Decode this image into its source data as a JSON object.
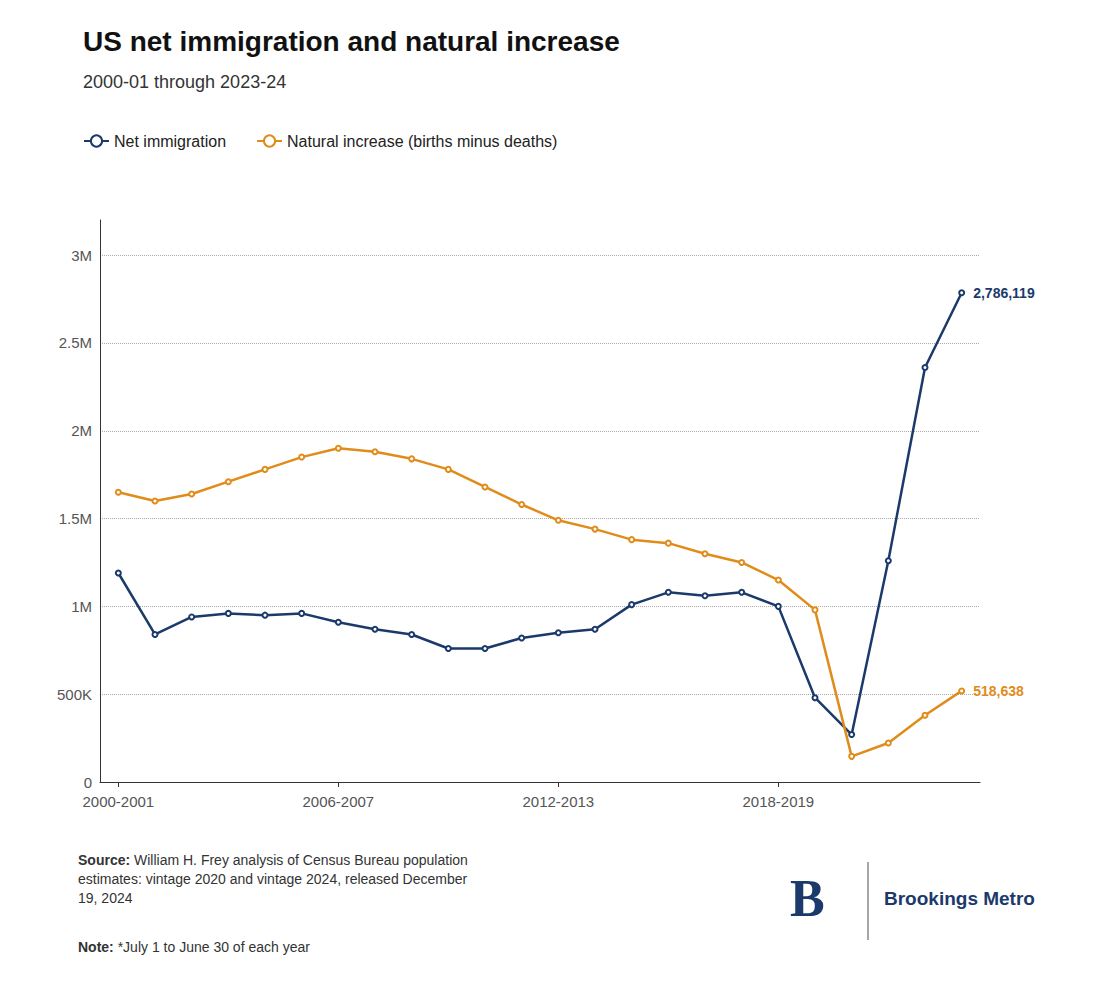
{
  "chart_data": {
    "type": "line",
    "title": "US net immigration and natural increase",
    "subtitle": "2000-01 through 2023-24",
    "categories": [
      "2000-2001",
      null,
      null,
      null,
      null,
      null,
      "2006-2007",
      null,
      null,
      null,
      null,
      null,
      "2012-2013",
      null,
      null,
      null,
      null,
      null,
      "2018-2019",
      null,
      null,
      null,
      null,
      null
    ],
    "series": [
      {
        "name": "Net immigration",
        "color": "#1b3a6b",
        "values": [
          1190000,
          840000,
          940000,
          960000,
          950000,
          960000,
          910000,
          870000,
          840000,
          760000,
          760000,
          820000,
          850000,
          870000,
          1010000,
          1080000,
          1060000,
          1080000,
          1000000,
          480000,
          270000,
          1260000,
          2360000,
          2786119
        ],
        "value_labels": [
          null,
          null,
          null,
          null,
          null,
          null,
          null,
          null,
          null,
          null,
          null,
          null,
          null,
          null,
          null,
          null,
          null,
          null,
          null,
          null,
          null,
          null,
          null,
          "2,786,119"
        ]
      },
      {
        "name": "Natural increase (births minus deaths)",
        "color": "#e08c1a",
        "values": [
          1650000,
          1600000,
          1640000,
          1710000,
          1780000,
          1850000,
          1900000,
          1880000,
          1840000,
          1780000,
          1680000,
          1580000,
          1490000,
          1440000,
          1380000,
          1360000,
          1300000,
          1250000,
          1150000,
          980000,
          146000,
          222000,
          380000,
          518638
        ],
        "value_labels": [
          null,
          null,
          null,
          null,
          null,
          null,
          null,
          null,
          null,
          null,
          null,
          null,
          null,
          null,
          null,
          null,
          null,
          null,
          null,
          null,
          null,
          null,
          null,
          "518,638"
        ]
      }
    ],
    "ylim": [
      0,
      3200000
    ],
    "yticks": [
      0,
      {
        "value": 500000,
        "label": "500K"
      },
      {
        "value": 1000000,
        "label": "1M"
      },
      {
        "value": 1500000,
        "label": "1.5M"
      },
      {
        "value": 2000000,
        "label": "2M"
      },
      {
        "value": 2500000,
        "label": "2.5M"
      },
      {
        "value": 3000000,
        "label": "3M"
      }
    ],
    "grid": true,
    "legend": "upper left",
    "source_label": "Source:",
    "source": "William H. Frey analysis of Census Bureau population\nestimates: vintage 2020 and vintage 2024, released December\n19, 2024",
    "note_label": "Note:",
    "note": "*July 1 to June 30 of each year",
    "logo": {
      "letter": "B",
      "text": "Brookings Metro",
      "color": "#1b3a6b"
    }
  }
}
